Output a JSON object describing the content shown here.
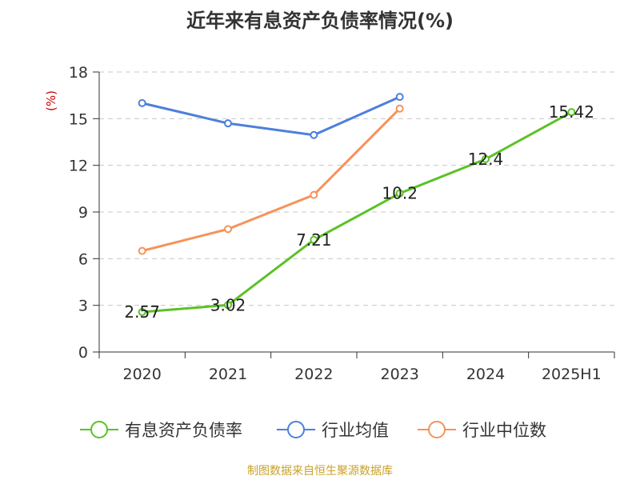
{
  "chart_data": {
    "type": "line",
    "title": "近年来有息资产负债率情况(%)",
    "ylabel": "(%)",
    "xlabel": "",
    "ylim": [
      0,
      18
    ],
    "yticks": [
      0,
      3,
      6,
      9,
      12,
      15,
      18
    ],
    "grid": true,
    "legend_position": "bottom",
    "categories": [
      "2020",
      "2021",
      "2022",
      "2023",
      "2024",
      "2025H1"
    ],
    "series": [
      {
        "name": "有息资产负债率",
        "color": "#5bc225",
        "values": [
          2.57,
          3.02,
          7.21,
          10.2,
          12.4,
          15.42
        ],
        "labels": true
      },
      {
        "name": "行业均值",
        "color": "#4d7fdb",
        "values": [
          16.0,
          14.7,
          13.95,
          16.4,
          null,
          null
        ],
        "labels": false
      },
      {
        "name": "行业中位数",
        "color": "#f5935a",
        "values": [
          6.5,
          7.9,
          10.1,
          15.65,
          null,
          null
        ],
        "labels": false
      }
    ]
  },
  "source": "制图数据来自恒生聚源数据库"
}
